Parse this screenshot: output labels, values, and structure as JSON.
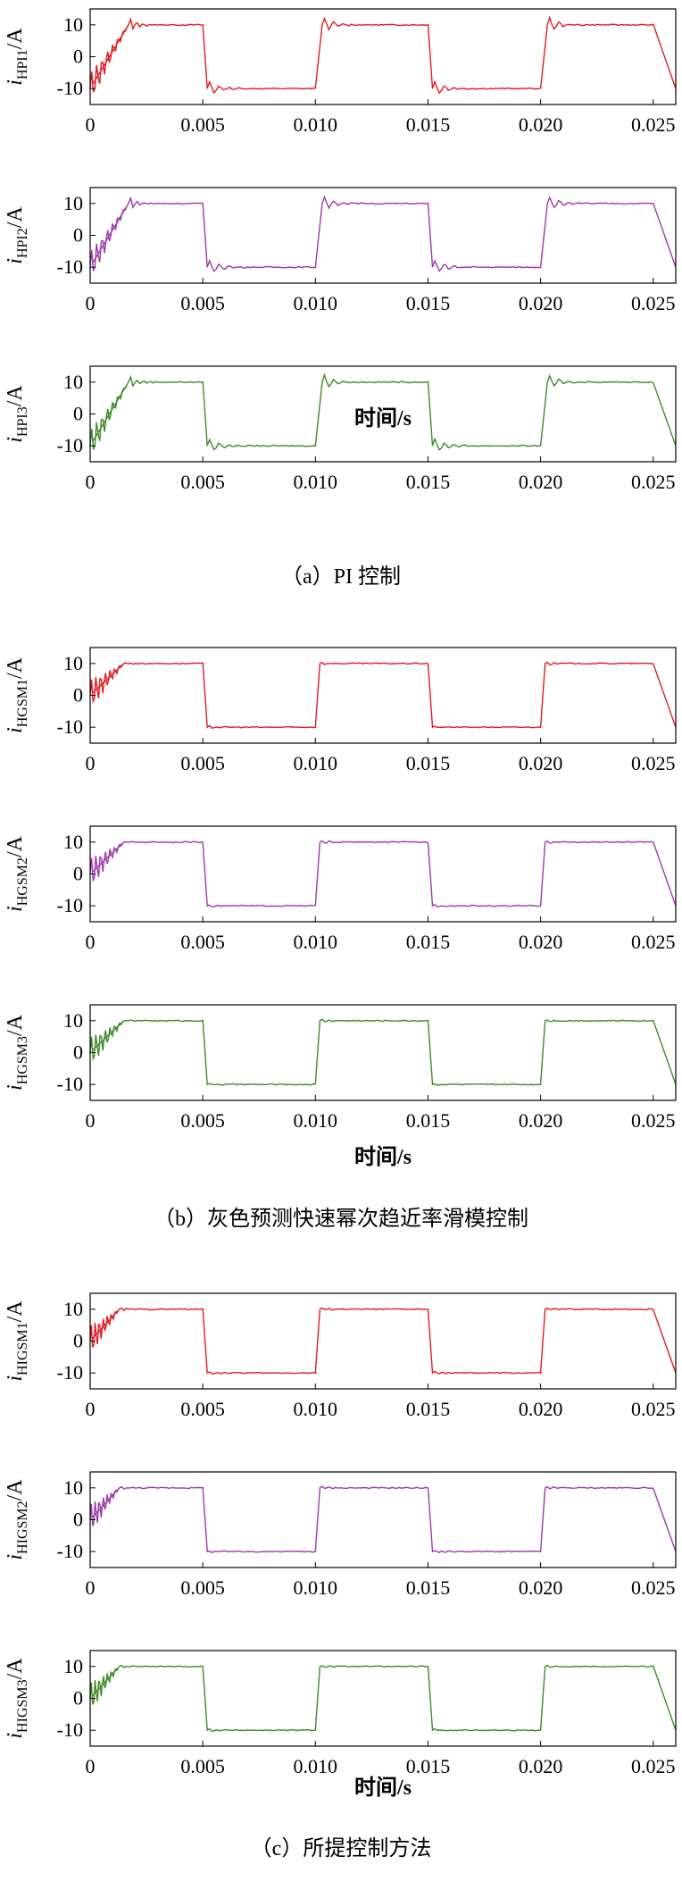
{
  "colors": {
    "red": "#e01b24",
    "purple": "#9b3aa8",
    "green": "#3f8a2a"
  },
  "shared_axes": {
    "xlabel": "时间/s",
    "xticks": [
      0,
      0.005,
      0.01,
      0.015,
      0.02,
      0.025
    ],
    "xtick_labels": [
      "0",
      "0.005",
      "0.010",
      "0.015",
      "0.020",
      "0.025"
    ],
    "yticks": [
      10,
      0,
      -10
    ],
    "ytick_labels": [
      "10",
      "0",
      "-10"
    ],
    "xlim": [
      0,
      0.026
    ],
    "ylim": [
      -15,
      15
    ]
  },
  "groups": [
    {
      "caption": "（a）PI 控制"
    },
    {
      "caption": "（b）灰色预测快速幂次趋近率滑模控制"
    },
    {
      "caption": "（c）所提控制方法"
    }
  ],
  "chart_data": [
    {
      "type": "line",
      "ylabel_main": "i",
      "ylabel_sub": "HPI1",
      "ylabel_unit": "/A",
      "series": [
        {
          "color": "red",
          "x": [
            0,
            0.0017,
            0.005,
            0.0052,
            0.01,
            0.0103,
            0.015,
            0.0152,
            0.02,
            0.0203,
            0.025
          ],
          "y": [
            -10,
            10,
            10,
            -10,
            -10,
            10,
            10,
            -10,
            -10,
            10,
            10
          ]
        }
      ]
    },
    {
      "type": "line",
      "ylabel_main": "i",
      "ylabel_sub": "HPI2",
      "ylabel_unit": "/A",
      "series": [
        {
          "color": "purple",
          "x": [
            0,
            0.0017,
            0.005,
            0.0052,
            0.01,
            0.0103,
            0.015,
            0.0152,
            0.02,
            0.0203,
            0.025
          ],
          "y": [
            -10,
            10,
            10,
            -10,
            -10,
            10,
            10,
            -10,
            -10,
            10,
            10
          ]
        }
      ]
    },
    {
      "type": "line",
      "ylabel_main": "i",
      "ylabel_sub": "HPI3",
      "ylabel_unit": "/A",
      "series": [
        {
          "color": "green",
          "x": [
            0,
            0.0017,
            0.005,
            0.0052,
            0.01,
            0.0103,
            0.015,
            0.0152,
            0.02,
            0.0203,
            0.025
          ],
          "y": [
            -10,
            10,
            10,
            -10,
            -10,
            10,
            10,
            -10,
            -10,
            10,
            10
          ]
        }
      ]
    },
    {
      "type": "line",
      "ylabel_main": "i",
      "ylabel_sub": "HGSM1",
      "ylabel_unit": "/A",
      "series": [
        {
          "color": "red",
          "x": [
            0,
            0.0015,
            0.005,
            0.0052,
            0.01,
            0.0102,
            0.015,
            0.0152,
            0.02,
            0.0202,
            0.025
          ],
          "y": [
            0,
            10,
            10,
            -10,
            -10,
            10,
            10,
            -10,
            -10,
            10,
            10
          ]
        }
      ]
    },
    {
      "type": "line",
      "ylabel_main": "i",
      "ylabel_sub": "HGSM2",
      "ylabel_unit": "/A",
      "series": [
        {
          "color": "purple",
          "x": [
            0,
            0.0015,
            0.005,
            0.0052,
            0.01,
            0.0102,
            0.015,
            0.0152,
            0.02,
            0.0202,
            0.025
          ],
          "y": [
            0,
            10,
            10,
            -10,
            -10,
            10,
            10,
            -10,
            -10,
            10,
            10
          ]
        }
      ]
    },
    {
      "type": "line",
      "ylabel_main": "i",
      "ylabel_sub": "HGSM3",
      "ylabel_unit": "/A",
      "series": [
        {
          "color": "green",
          "x": [
            0,
            0.0015,
            0.005,
            0.0052,
            0.01,
            0.0102,
            0.015,
            0.0152,
            0.02,
            0.0202,
            0.025
          ],
          "y": [
            0,
            10,
            10,
            -10,
            -10,
            10,
            10,
            -10,
            -10,
            10,
            10
          ]
        }
      ]
    },
    {
      "type": "line",
      "ylabel_main": "i",
      "ylabel_sub": "HIGSM1",
      "ylabel_unit": "/A",
      "series": [
        {
          "color": "red",
          "x": [
            0,
            0.0013,
            0.005,
            0.0052,
            0.01,
            0.0102,
            0.015,
            0.0152,
            0.02,
            0.0202,
            0.025
          ],
          "y": [
            0,
            10,
            10,
            -10,
            -10,
            10,
            10,
            -10,
            -10,
            10,
            10
          ]
        }
      ]
    },
    {
      "type": "line",
      "ylabel_main": "i",
      "ylabel_sub": "HIGSM2",
      "ylabel_unit": "/A",
      "series": [
        {
          "color": "purple",
          "x": [
            0,
            0.0013,
            0.005,
            0.0052,
            0.01,
            0.0102,
            0.015,
            0.0152,
            0.02,
            0.0202,
            0.025
          ],
          "y": [
            0,
            10,
            10,
            -10,
            -10,
            10,
            10,
            -10,
            -10,
            10,
            10
          ]
        }
      ]
    },
    {
      "type": "line",
      "ylabel_main": "i",
      "ylabel_sub": "HIGSM3",
      "ylabel_unit": "/A",
      "series": [
        {
          "color": "green",
          "x": [
            0,
            0.0013,
            0.005,
            0.0052,
            0.01,
            0.0102,
            0.015,
            0.0152,
            0.02,
            0.0202,
            0.025
          ],
          "y": [
            0,
            10,
            10,
            -10,
            -10,
            10,
            10,
            -10,
            -10,
            10,
            10
          ]
        }
      ]
    }
  ]
}
